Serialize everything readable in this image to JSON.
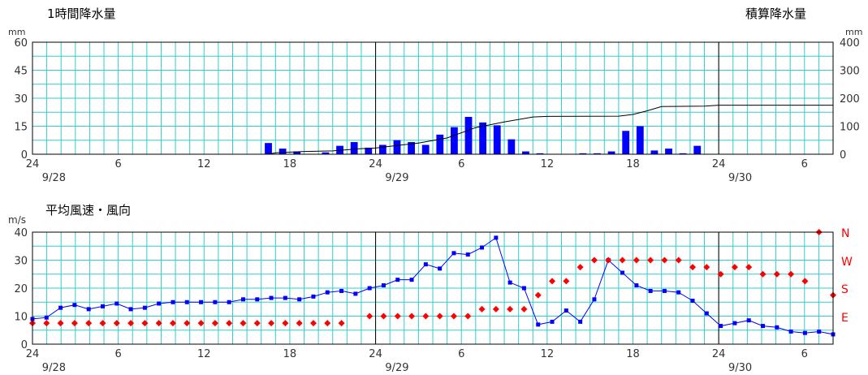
{
  "chart_data": [
    {
      "type": "bar",
      "title": "1時間降水量",
      "right_title": "積算降水量",
      "ylabel": "mm",
      "y2label": "mm",
      "ylim": [
        0,
        60
      ],
      "y2lim": [
        0,
        400
      ],
      "yticks": [
        "60",
        "45",
        "30",
        "15",
        "0"
      ],
      "y2ticks": [
        "400",
        "300",
        "200",
        "100",
        "0"
      ],
      "xlim": [
        0,
        56
      ],
      "xticks": [
        {
          "x": 0,
          "label": "24"
        },
        {
          "x": 6,
          "label": "6"
        },
        {
          "x": 12,
          "label": "12"
        },
        {
          "x": 18,
          "label": "18"
        },
        {
          "x": 24,
          "label": "24"
        },
        {
          "x": 30,
          "label": "6"
        },
        {
          "x": 36,
          "label": "12"
        },
        {
          "x": 42,
          "label": "18"
        },
        {
          "x": 48,
          "label": "24"
        },
        {
          "x": 54,
          "label": "6"
        }
      ],
      "date_labels": [
        {
          "x": 1.5,
          "label": "9/28"
        },
        {
          "x": 25.5,
          "label": "9/29"
        },
        {
          "x": 49.5,
          "label": "9/30"
        }
      ],
      "day_lines": [
        24,
        48
      ],
      "series": [
        {
          "kind": "bar",
          "color": "#0000ff",
          "points": [
            [
              17,
              6
            ],
            [
              18,
              3
            ],
            [
              19,
              1.5
            ],
            [
              21,
              1
            ],
            [
              22,
              4.5
            ],
            [
              23,
              6.5
            ],
            [
              24,
              3.5
            ],
            [
              25,
              5
            ],
            [
              26,
              7.5
            ],
            [
              27,
              6.5
            ],
            [
              28,
              5
            ],
            [
              29,
              10.5
            ],
            [
              30,
              14.5
            ],
            [
              31,
              20
            ],
            [
              32,
              17
            ],
            [
              33,
              15.5
            ],
            [
              34,
              8
            ],
            [
              35,
              1.5
            ],
            [
              36,
              0.5
            ],
            [
              39,
              0.5
            ],
            [
              40,
              0.5
            ],
            [
              41,
              1.5
            ],
            [
              42,
              12.5
            ],
            [
              43,
              15
            ],
            [
              44,
              2
            ],
            [
              45,
              3
            ],
            [
              46,
              0.5
            ],
            [
              47,
              4.5
            ]
          ]
        },
        {
          "kind": "line",
          "axis": "right",
          "color": "#000000",
          "points": [
            [
              16.5,
              0
            ],
            [
              17,
              5
            ],
            [
              19,
              10
            ],
            [
              21,
              12
            ],
            [
              23,
              20
            ],
            [
              24,
              22
            ],
            [
              25,
              28
            ],
            [
              27,
              40
            ],
            [
              29,
              58
            ],
            [
              31,
              95
            ],
            [
              33,
              115
            ],
            [
              35,
              133
            ],
            [
              36,
              135
            ],
            [
              41,
              136
            ],
            [
              42,
              142
            ],
            [
              43,
              155
            ],
            [
              44,
              170
            ],
            [
              47,
              172
            ],
            [
              48,
              175
            ],
            [
              56,
              175
            ]
          ]
        }
      ]
    },
    {
      "type": "line",
      "title": "平均風速・風向",
      "ylabel": "m/s",
      "ylim": [
        0,
        40
      ],
      "yticks": [
        "40",
        "30",
        "20",
        "10",
        "0"
      ],
      "direction_labels": [
        "N",
        "W",
        "S",
        "E"
      ],
      "xlim": [
        0,
        56
      ],
      "xticks": [
        {
          "x": 0,
          "label": "24"
        },
        {
          "x": 6,
          "label": "6"
        },
        {
          "x": 12,
          "label": "12"
        },
        {
          "x": 18,
          "label": "18"
        },
        {
          "x": 24,
          "label": "24"
        },
        {
          "x": 30,
          "label": "6"
        },
        {
          "x": 36,
          "label": "12"
        },
        {
          "x": 42,
          "label": "18"
        },
        {
          "x": 48,
          "label": "24"
        },
        {
          "x": 54,
          "label": "6"
        }
      ],
      "date_labels": [
        {
          "x": 1.5,
          "label": "9/28"
        },
        {
          "x": 25.5,
          "label": "9/29"
        },
        {
          "x": 49.5,
          "label": "9/30"
        }
      ],
      "day_lines": [
        24,
        48
      ],
      "speed": {
        "color": "#0000ff",
        "values": [
          9,
          9.5,
          13,
          14,
          12.5,
          13.5,
          14.5,
          12.5,
          13,
          14.5,
          15,
          15,
          15,
          15,
          15,
          16,
          16,
          16.5,
          16.5,
          16,
          17,
          18.5,
          19,
          18,
          20,
          21,
          23,
          23,
          28.5,
          27,
          32.5,
          32,
          34.5,
          38,
          22,
          20,
          7,
          8,
          12,
          8,
          16,
          30,
          25.5,
          21,
          19,
          19,
          18.5,
          15.5,
          11,
          6.5,
          7.5,
          8.5,
          6.5,
          6,
          4.5,
          4,
          4.5,
          3.5
        ]
      },
      "direction": {
        "color": "#ff0000",
        "values": [
          7.5,
          7.5,
          7.5,
          7.5,
          7.5,
          7.5,
          7.5,
          7.5,
          7.5,
          7.5,
          7.5,
          7.5,
          7.5,
          7.5,
          7.5,
          7.5,
          7.5,
          7.5,
          7.5,
          7.5,
          7.5,
          7.5,
          7.5,
          null,
          10,
          10,
          10,
          10,
          10,
          10,
          10,
          10,
          12.5,
          12.5,
          12.5,
          12.5,
          17.5,
          22.5,
          22.5,
          27.5,
          30,
          30,
          30,
          30,
          30,
          30,
          30,
          27.5,
          27.5,
          25,
          27.5,
          27.5,
          25,
          25,
          25,
          22.5,
          40,
          17.5
        ]
      }
    }
  ]
}
